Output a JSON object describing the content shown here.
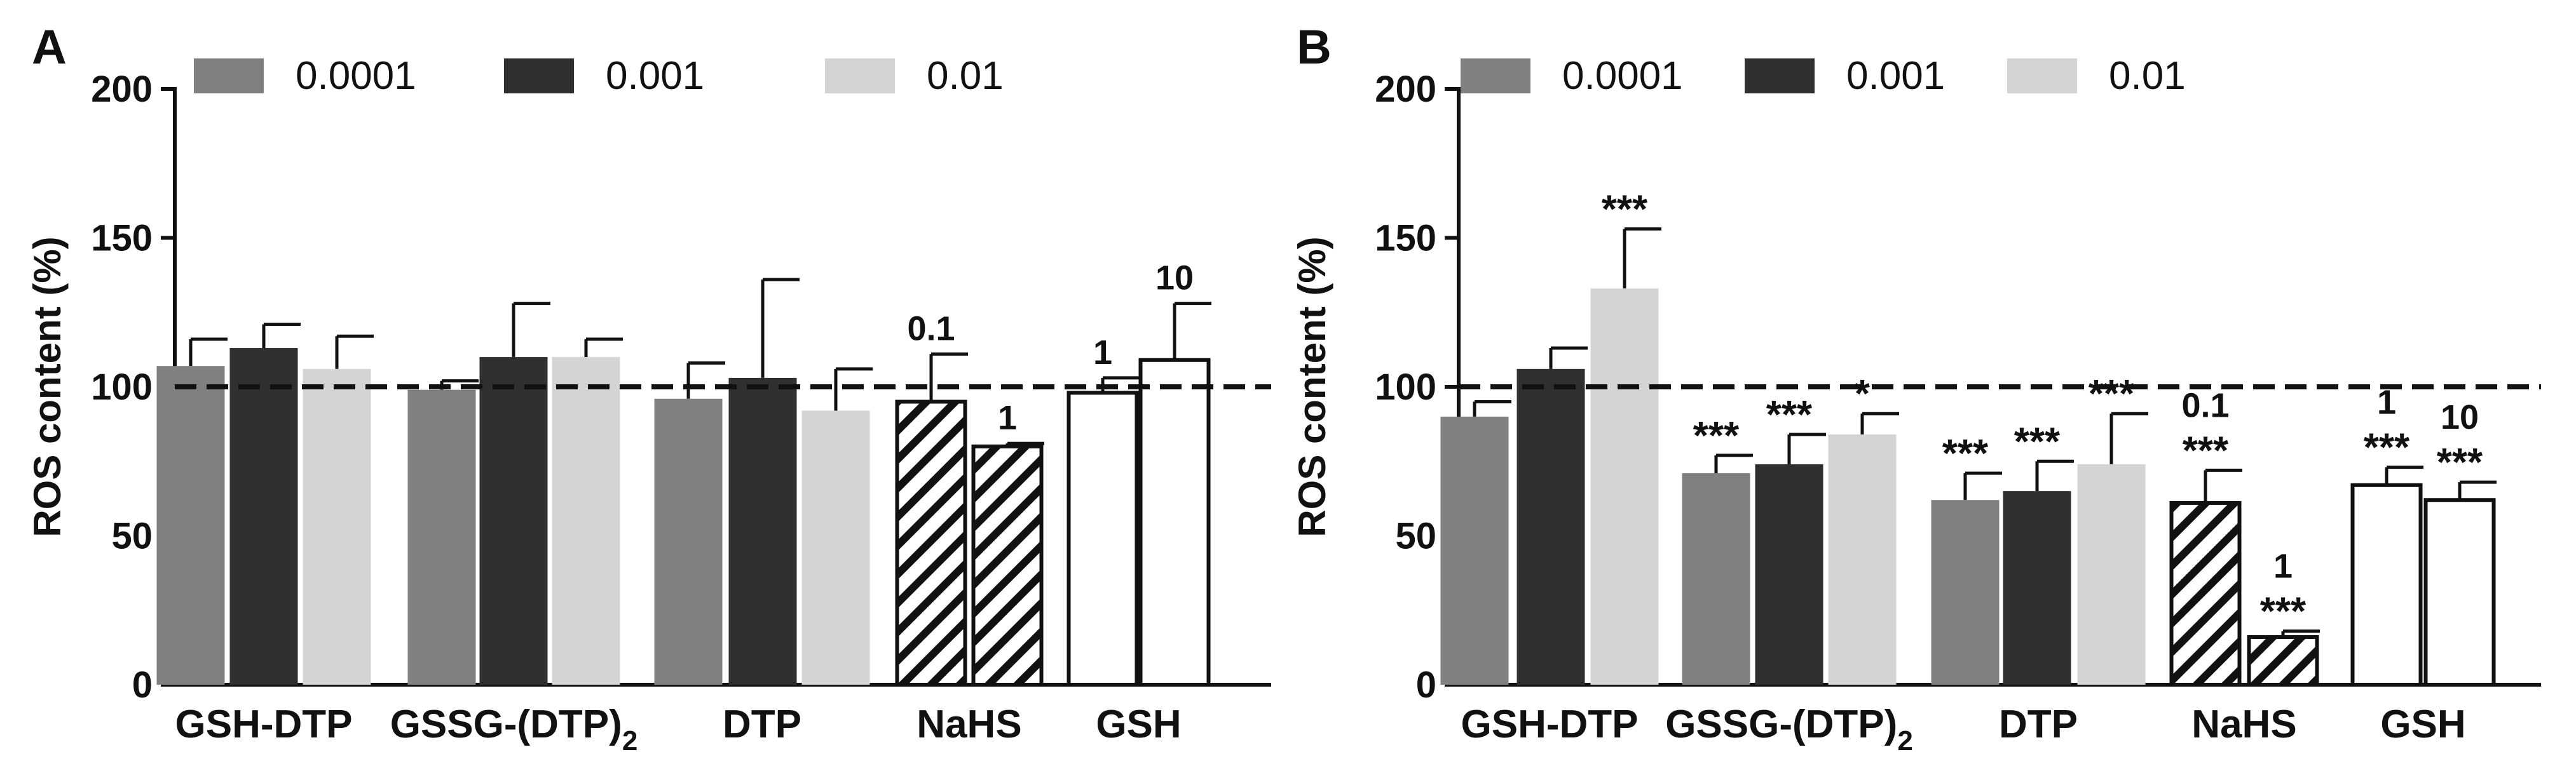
{
  "chart_data": [
    {
      "panel_label": "A",
      "type": "bar",
      "ylabel": "ROS content (%)",
      "ylim": [
        0,
        200
      ],
      "yticks": [
        0,
        50,
        100,
        150,
        200
      ],
      "reference_line": 100,
      "legend": {
        "position": "top",
        "entries": [
          {
            "name": "0.0001",
            "color": "#808080"
          },
          {
            "name": "0.001",
            "color": "#2f2f2f"
          },
          {
            "name": "0.01",
            "color": "#d4d4d4"
          }
        ]
      },
      "groups": [
        {
          "label": "GSH-DTP",
          "label_main": "GSH-DTP",
          "label_sub": "",
          "bars": [
            {
              "value": 107,
              "error": 9,
              "fill": "#808080",
              "sig": ""
            },
            {
              "value": 113,
              "error": 8,
              "fill": "#2f2f2f",
              "sig": ""
            },
            {
              "value": 106,
              "error": 11,
              "fill": "#d4d4d4",
              "sig": ""
            }
          ]
        },
        {
          "label": "GSSG-(DTP)2",
          "label_main": "GSSG-(DTP)",
          "label_sub": "2",
          "bars": [
            {
              "value": 99,
              "error": 3,
              "fill": "#808080",
              "sig": ""
            },
            {
              "value": 110,
              "error": 18,
              "fill": "#2f2f2f",
              "sig": ""
            },
            {
              "value": 110,
              "error": 6,
              "fill": "#d4d4d4",
              "sig": ""
            }
          ]
        },
        {
          "label": "DTP",
          "label_main": "DTP",
          "label_sub": "",
          "bars": [
            {
              "value": 96,
              "error": 12,
              "fill": "#808080",
              "sig": ""
            },
            {
              "value": 103,
              "error": 33,
              "fill": "#2f2f2f",
              "sig": ""
            },
            {
              "value": 92,
              "error": 14,
              "fill": "#d4d4d4",
              "sig": ""
            }
          ]
        },
        {
          "label": "NaHS",
          "label_main": "NaHS",
          "label_sub": "",
          "bars": [
            {
              "value": 95,
              "error": 16,
              "fill": "hatch",
              "conc": "0.1",
              "sig": ""
            },
            {
              "value": 80,
              "error": 1,
              "fill": "hatch",
              "conc": "1",
              "sig": ""
            }
          ]
        },
        {
          "label": "GSH",
          "label_main": "GSH",
          "label_sub": "",
          "bars": [
            {
              "value": 98,
              "error": 5,
              "fill": "#ffffff",
              "conc": "1",
              "sig": ""
            },
            {
              "value": 109,
              "error": 19,
              "fill": "#ffffff",
              "conc": "10",
              "sig": ""
            }
          ]
        }
      ]
    },
    {
      "panel_label": "B",
      "type": "bar",
      "ylabel": "ROS content (%)",
      "ylim": [
        0,
        200
      ],
      "yticks": [
        0,
        50,
        100,
        150,
        200
      ],
      "reference_line": 100,
      "legend": {
        "position": "top",
        "entries": [
          {
            "name": "0.0001",
            "color": "#808080"
          },
          {
            "name": "0.001",
            "color": "#2f2f2f"
          },
          {
            "name": "0.01",
            "color": "#d4d4d4"
          }
        ]
      },
      "groups": [
        {
          "label": "GSH-DTP",
          "label_main": "GSH-DTP",
          "label_sub": "",
          "bars": [
            {
              "value": 90,
              "error": 5,
              "fill": "#808080",
              "sig": ""
            },
            {
              "value": 106,
              "error": 7,
              "fill": "#2f2f2f",
              "sig": ""
            },
            {
              "value": 133,
              "error": 20,
              "fill": "#d4d4d4",
              "sig": "***"
            }
          ]
        },
        {
          "label": "GSSG-(DTP)2",
          "label_main": "GSSG-(DTP)",
          "label_sub": "2",
          "bars": [
            {
              "value": 71,
              "error": 6,
              "fill": "#808080",
              "sig": "***"
            },
            {
              "value": 74,
              "error": 10,
              "fill": "#2f2f2f",
              "sig": "***"
            },
            {
              "value": 84,
              "error": 7,
              "fill": "#d4d4d4",
              "sig": "*"
            }
          ]
        },
        {
          "label": "DTP",
          "label_main": "DTP",
          "label_sub": "",
          "bars": [
            {
              "value": 62,
              "error": 9,
              "fill": "#808080",
              "sig": "***"
            },
            {
              "value": 65,
              "error": 10,
              "fill": "#2f2f2f",
              "sig": "***"
            },
            {
              "value": 74,
              "error": 17,
              "fill": "#d4d4d4",
              "sig": "***"
            }
          ]
        },
        {
          "label": "NaHS",
          "label_main": "NaHS",
          "label_sub": "",
          "bars": [
            {
              "value": 61,
              "error": 11,
              "fill": "hatch",
              "conc": "0.1",
              "sig": "***"
            },
            {
              "value": 16,
              "error": 2,
              "fill": "hatch",
              "conc": "1",
              "sig": "***"
            }
          ]
        },
        {
          "label": "GSH",
          "label_main": "GSH",
          "label_sub": "",
          "bars": [
            {
              "value": 67,
              "error": 6,
              "fill": "#ffffff",
              "conc": "1",
              "sig": "***"
            },
            {
              "value": 62,
              "error": 6,
              "fill": "#ffffff",
              "conc": "10",
              "sig": "***"
            }
          ]
        }
      ]
    }
  ]
}
